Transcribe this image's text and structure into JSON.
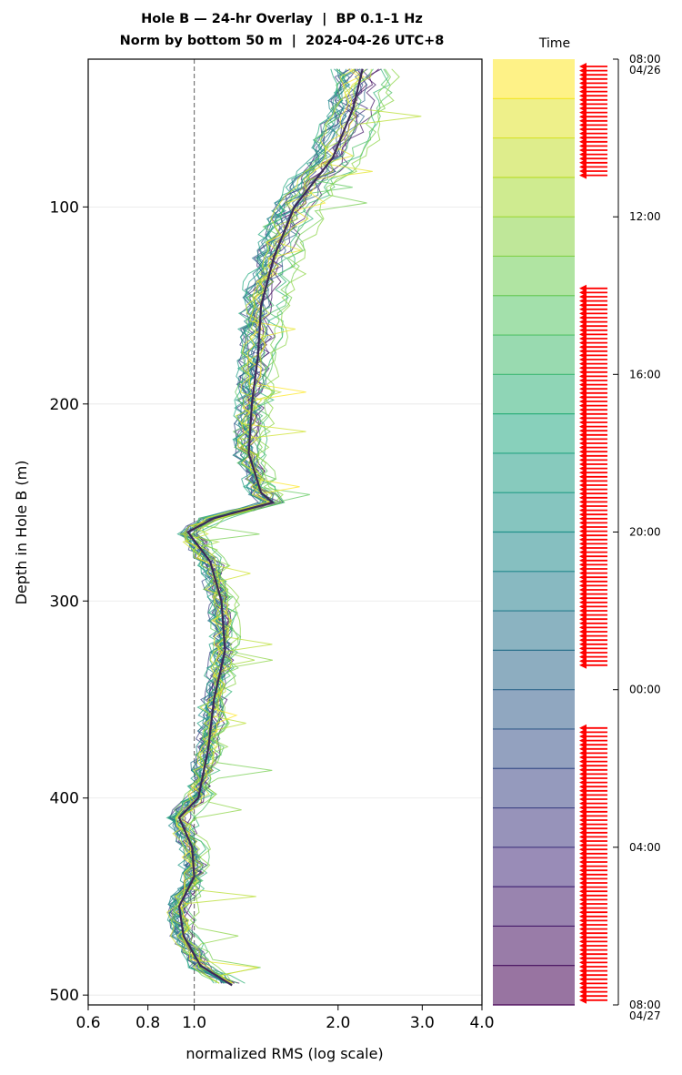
{
  "chart_data": {
    "type": "line",
    "title_line1": "Hole B — 24-hr Overlay  |  BP 0.1–1 Hz",
    "title_line2": "Norm by bottom 50 m  |  2024-04-26 UTC+8",
    "xlabel": "normalized RMS  (log scale)",
    "ylabel": "Depth in Hole B (m)",
    "x_scale": "log",
    "xlim": [
      0.6,
      4.0
    ],
    "ylim": [
      505,
      25
    ],
    "y_inverted": true,
    "x_ticks": [
      0.6,
      0.8,
      1.0,
      2.0,
      3.0,
      4.0
    ],
    "x_tick_labels": [
      "0.6",
      "0.8",
      "1.0",
      "2.0",
      "3.0",
      "4.0"
    ],
    "y_ticks": [
      100,
      200,
      300,
      400,
      500
    ],
    "y_tick_labels": [
      "100",
      "200",
      "300",
      "400",
      "500"
    ],
    "grid": "horizontal",
    "reference_line": {
      "x": 1.0,
      "style": "dashed"
    },
    "colormap": "viridis",
    "mean_profile": [
      {
        "depth": 30,
        "x": 2.25
      },
      {
        "depth": 50,
        "x": 2.15
      },
      {
        "depth": 75,
        "x": 1.95
      },
      {
        "depth": 100,
        "x": 1.62
      },
      {
        "depth": 125,
        "x": 1.47
      },
      {
        "depth": 150,
        "x": 1.38
      },
      {
        "depth": 175,
        "x": 1.36
      },
      {
        "depth": 200,
        "x": 1.32
      },
      {
        "depth": 225,
        "x": 1.3
      },
      {
        "depth": 245,
        "x": 1.38
      },
      {
        "depth": 250,
        "x": 1.46
      },
      {
        "depth": 258,
        "x": 1.1
      },
      {
        "depth": 265,
        "x": 0.97
      },
      {
        "depth": 280,
        "x": 1.08
      },
      {
        "depth": 300,
        "x": 1.14
      },
      {
        "depth": 325,
        "x": 1.16
      },
      {
        "depth": 350,
        "x": 1.1
      },
      {
        "depth": 375,
        "x": 1.07
      },
      {
        "depth": 400,
        "x": 1.02
      },
      {
        "depth": 410,
        "x": 0.93
      },
      {
        "depth": 425,
        "x": 0.99
      },
      {
        "depth": 440,
        "x": 1.0
      },
      {
        "depth": 455,
        "x": 0.93
      },
      {
        "depth": 470,
        "x": 0.95
      },
      {
        "depth": 485,
        "x": 1.03
      },
      {
        "depth": 495,
        "x": 1.2
      }
    ],
    "colorbar": {
      "label": "Time",
      "bands": 24,
      "ticks": [
        {
          "label": "08:00",
          "sub": "04/26",
          "frac": 0.0
        },
        {
          "label": "12:00",
          "sub": "",
          "frac": 0.1667
        },
        {
          "label": "16:00",
          "sub": "",
          "frac": 0.3333
        },
        {
          "label": "20:00",
          "sub": "",
          "frac": 0.5
        },
        {
          "label": "00:00",
          "sub": "",
          "frac": 0.6667
        },
        {
          "label": "04:00",
          "sub": "",
          "frac": 0.8333
        },
        {
          "label": "08:00",
          "sub": "04/27",
          "frac": 1.0
        }
      ],
      "arrow_color": "#ff0000",
      "arrow_gaps": [
        [
          0.125,
          0.24
        ],
        [
          0.645,
          0.705
        ]
      ]
    }
  }
}
